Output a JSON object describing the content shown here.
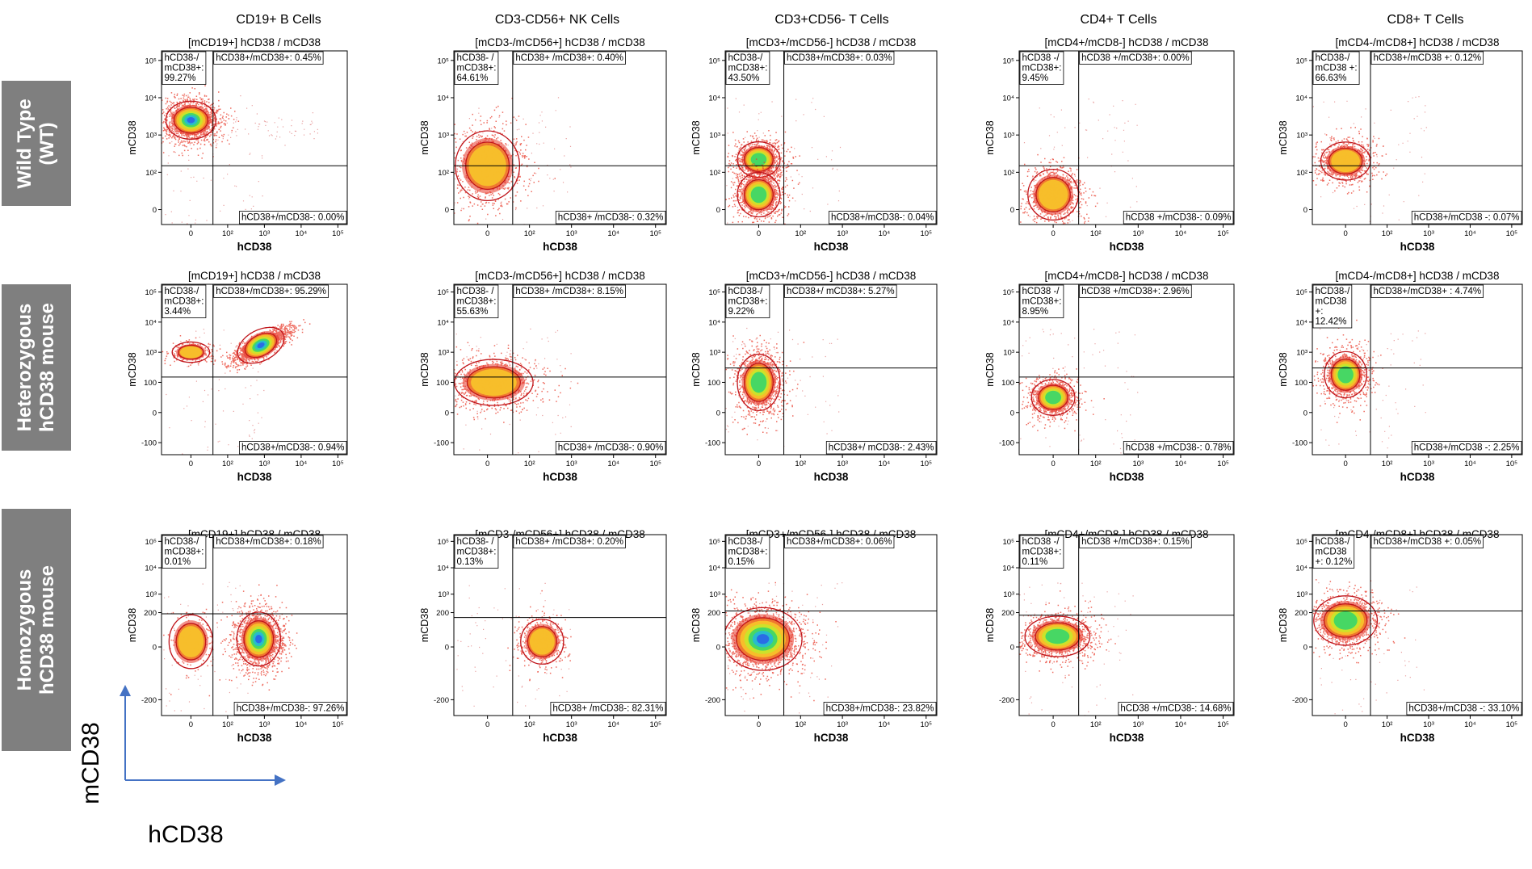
{
  "figure": {
    "column_titles": [
      "CD19+ B Cells",
      "CD3-CD56+ NK Cells",
      "CD3+CD56- T Cells",
      "CD4+ T Cells",
      "CD8+ T Cells"
    ],
    "row_labels": [
      "Wild Type\n(WT)",
      "Heterozygous\nhCD38 mouse",
      "Homozygous\nhCD38 mouse"
    ],
    "legend": {
      "x_axis": "hCD38",
      "y_axis": "mCD38"
    },
    "colors": {
      "row_label_bg": "#7f7f7f",
      "arrow": "#4472c4",
      "dots": "#e83a2a",
      "contour": "#c0151b"
    }
  },
  "chart_data": [
    {
      "type": "scatter",
      "row": 0,
      "col": 0,
      "title": "[mCD19+] hCD38 / mCD38",
      "xlabel": "hCD38",
      "ylabel": "mCD38",
      "yscale": "wt",
      "gate_x": 60,
      "gate_y": 150,
      "q": {
        "ul": "hCD38-/\nmCD38+:\n99.27%",
        "ur": "hCD38+/mCD38+: 0.45%",
        "lr": "hCD38+/mCD38-: 0.00%"
      },
      "pop": {
        "x": 0,
        "y": 2500,
        "sx": 0.4,
        "sy": 0.3,
        "n": 1400
      },
      "tail": {
        "x0": 60,
        "x1": 30000,
        "y": 1500,
        "n": 60
      }
    },
    {
      "type": "scatter",
      "row": 0,
      "col": 1,
      "title": "[mCD3-/mCD56+] hCD38 / mCD38",
      "xlabel": "hCD38",
      "ylabel": "mCD38",
      "yscale": "wt",
      "gate_x": 60,
      "gate_y": 150,
      "q": {
        "ul": "hCD38- /\nmCD38+:\n64.61%",
        "ur": "hCD38+ /mCD38+: 0.40%",
        "lr": "hCD38+ /mCD38-: 0.32%"
      },
      "pop": {
        "x": 0,
        "y": 150,
        "sx": 0.45,
        "sy": 0.55,
        "n": 700
      }
    },
    {
      "type": "scatter",
      "row": 0,
      "col": 2,
      "title": "[mCD3+/mCD56-] hCD38 / mCD38",
      "xlabel": "hCD38",
      "ylabel": "mCD38",
      "yscale": "wt",
      "gate_x": 60,
      "gate_y": 150,
      "q": {
        "ul": "hCD38-/\nmCD38+:\n43.50%",
        "ur": "hCD38+/mCD38+: 0.03%",
        "lr": "hCD38+/mCD38-: 0.04%"
      },
      "pop": {
        "x": 0,
        "y": 220,
        "sx": 0.3,
        "sy": 0.28,
        "n": 900
      },
      "pop2": {
        "x": 0,
        "y": 40,
        "sx": 0.3,
        "sy": 0.35,
        "n": 900
      }
    },
    {
      "type": "scatter",
      "row": 0,
      "col": 3,
      "title": "[mCD4+/mCD8-] hCD38 / mCD38",
      "xlabel": "hCD38",
      "ylabel": "mCD38",
      "yscale": "wt",
      "gate_x": 60,
      "gate_y": 150,
      "q": {
        "ul": "hCD38 -/\nmCD38+:\n9.45%",
        "ur": "hCD38 +/mCD38+: 0.00%",
        "lr": "hCD38 +/mCD38-: 0.09%"
      },
      "pop": {
        "x": 0,
        "y": 40,
        "sx": 0.35,
        "sy": 0.4,
        "n": 800
      }
    },
    {
      "type": "scatter",
      "row": 0,
      "col": 4,
      "title": "[mCD4-/mCD8+] hCD38 / mCD38",
      "xlabel": "hCD38",
      "ylabel": "mCD38",
      "yscale": "wt",
      "gate_x": 60,
      "gate_y": 150,
      "q": {
        "ul": "hCD38-/\nmCD38 +:\n66.63%",
        "ur": "hCD38+/mCD38 +: 0.12%",
        "lr": "hCD38+/mCD38 -: 0.07%"
      },
      "pop": {
        "x": 0,
        "y": 200,
        "sx": 0.35,
        "sy": 0.3,
        "n": 800
      }
    },
    {
      "type": "scatter",
      "row": 1,
      "col": 0,
      "title": "[mCD19+] hCD38 / mCD38",
      "xlabel": "hCD38",
      "ylabel": "mCD38",
      "yscale": "het",
      "gate_x": 60,
      "gate_y": 150,
      "q": {
        "ul": "hCD38-/\nmCD38+:\n3.44%",
        "ur": "hCD38+/mCD38+: 95.29%",
        "lr": "hCD38+/mCD38-: 0.94%"
      },
      "pop": {
        "x": 800,
        "y": 1700,
        "sx": 0.4,
        "sy": 0.3,
        "rho": 0.8,
        "n": 1500
      },
      "pop2": {
        "x": 0,
        "y": 1000,
        "sx": 0.3,
        "sy": 0.2,
        "n": 200
      }
    },
    {
      "type": "scatter",
      "row": 1,
      "col": 1,
      "title": "[mCD3-/mCD56+] hCD38 / mCD38",
      "xlabel": "hCD38",
      "ylabel": "mCD38",
      "yscale": "het",
      "gate_x": 60,
      "gate_y": 150,
      "q": {
        "ul": "hCD38- /\nmCD38+:\n55.63%",
        "ur": "hCD38+ /mCD38+: 8.15%",
        "lr": "hCD38+ /mCD38-: 0.90%"
      },
      "pop": {
        "x": 15,
        "y": 100,
        "sx": 0.55,
        "sy": 0.45,
        "n": 800
      }
    },
    {
      "type": "scatter",
      "row": 1,
      "col": 2,
      "title": "[mCD3+/mCD56-] hCD38 / mCD38",
      "xlabel": "hCD38",
      "ylabel": "mCD38",
      "yscale": "het",
      "gate_x": 60,
      "gate_y": 300,
      "q": {
        "ul": "hCD38-/\nmCD38+:\n9.22%",
        "ur": "hCD38+/ mCD38+: 5.27%",
        "lr": "hCD38+/ mCD38-: 2.43%"
      },
      "pop": {
        "x": 0,
        "y": 100,
        "sx": 0.3,
        "sy": 0.55,
        "n": 1100
      }
    },
    {
      "type": "scatter",
      "row": 1,
      "col": 3,
      "title": "[mCD4+/mCD8-] hCD38 / mCD38",
      "xlabel": "hCD38",
      "ylabel": "mCD38",
      "yscale": "het",
      "gate_x": 60,
      "gate_y": 150,
      "q": {
        "ul": "hCD38 -/\nmCD38+:\n8.95%",
        "ur": "hCD38 +/mCD38+: 2.96%",
        "lr": "hCD38 +/mCD38-: 0.78%"
      },
      "pop": {
        "x": 0,
        "y": 50,
        "sx": 0.3,
        "sy": 0.35,
        "n": 900
      }
    },
    {
      "type": "scatter",
      "row": 1,
      "col": 4,
      "title": "[mCD4-/mCD8+] hCD38 / mCD38",
      "xlabel": "hCD38",
      "ylabel": "mCD38",
      "yscale": "het",
      "gate_x": 60,
      "gate_y": 300,
      "q": {
        "ul": "hCD38-/\nmCD38\n+:\n12.42%",
        "ur": "hCD38+/mCD38+ : 4.74%",
        "lr": "hCD38+/mCD38 -: 2.25%"
      },
      "pop": {
        "x": 0,
        "y": 180,
        "sx": 0.3,
        "sy": 0.45,
        "n": 900
      }
    },
    {
      "type": "scatter",
      "row": 2,
      "col": 0,
      "title": "[mCD19+] hCD38 / mCD38",
      "xlabel": "hCD38",
      "ylabel": "mCD38",
      "yscale": "hom",
      "gate_x": 60,
      "gate_y": 180,
      "q": {
        "ul": "hCD38-/\nmCD38+:\n0.01%",
        "ur": "hCD38+/mCD38+: 0.18%",
        "lr": "hCD38+/mCD38-: 97.26%"
      },
      "pop": {
        "x": 700,
        "y": 30,
        "sx": 0.35,
        "sy": 0.6,
        "n": 1400
      },
      "pop2": {
        "x": 0,
        "y": 20,
        "sx": 0.35,
        "sy": 0.6,
        "n": 150
      }
    },
    {
      "type": "scatter",
      "row": 2,
      "col": 1,
      "title": "[mCD3-/mCD56+] hCD38 / mCD38",
      "xlabel": "hCD38",
      "ylabel": "mCD38",
      "yscale": "hom",
      "gate_x": 60,
      "gate_y": 130,
      "q": {
        "ul": "hCD38- /\nmCD38+:\n0.13%",
        "ur": "hCD38+ /mCD38+: 0.20%",
        "lr": "hCD38+ /mCD38-: 82.31%"
      },
      "pop": {
        "x": 200,
        "y": 20,
        "sx": 0.3,
        "sy": 0.5,
        "n": 500
      }
    },
    {
      "type": "scatter",
      "row": 2,
      "col": 2,
      "title": "[mCD3+/mCD56-] hCD38 / mCD38",
      "xlabel": "hCD38",
      "ylabel": "mCD38",
      "yscale": "hom",
      "gate_x": 60,
      "gate_y": 230,
      "q": {
        "ul": "hCD38-/\nmCD38+:\n0.15%",
        "ur": "hCD38+/mCD38+: 0.06%",
        "lr": "hCD38+/mCD38-: 23.82%"
      },
      "pop": {
        "x": 10,
        "y": 30,
        "sx": 0.55,
        "sy": 0.7,
        "n": 1300
      }
    },
    {
      "type": "scatter",
      "row": 2,
      "col": 3,
      "title": "[mCD4+/mCD8-] hCD38 / mCD38",
      "xlabel": "hCD38",
      "ylabel": "mCD38",
      "yscale": "hom",
      "gate_x": 60,
      "gate_y": 160,
      "q": {
        "ul": "hCD38 -/\nmCD38+:\n0.11%",
        "ur": "hCD38 +/mCD38+: 0.15%",
        "lr": "hCD38 +/mCD38-: 14.68%"
      },
      "pop": {
        "x": 10,
        "y": 40,
        "sx": 0.45,
        "sy": 0.45,
        "n": 1100
      }
    },
    {
      "type": "scatter",
      "row": 2,
      "col": 4,
      "title": "[mCD4-/mCD8+] hCD38 / mCD38",
      "xlabel": "hCD38",
      "ylabel": "mCD38",
      "yscale": "hom",
      "gate_x": 60,
      "gate_y": 230,
      "q": {
        "ul": "hCD38-/\nmCD38\n+: 0.12%",
        "ur": "hCD38+/mCD38 +: 0.05%",
        "lr": "hCD38+/mCD38 -: 33.10%"
      },
      "pop": {
        "x": 0,
        "y": 100,
        "sx": 0.45,
        "sy": 0.55,
        "n": 1000
      }
    }
  ]
}
